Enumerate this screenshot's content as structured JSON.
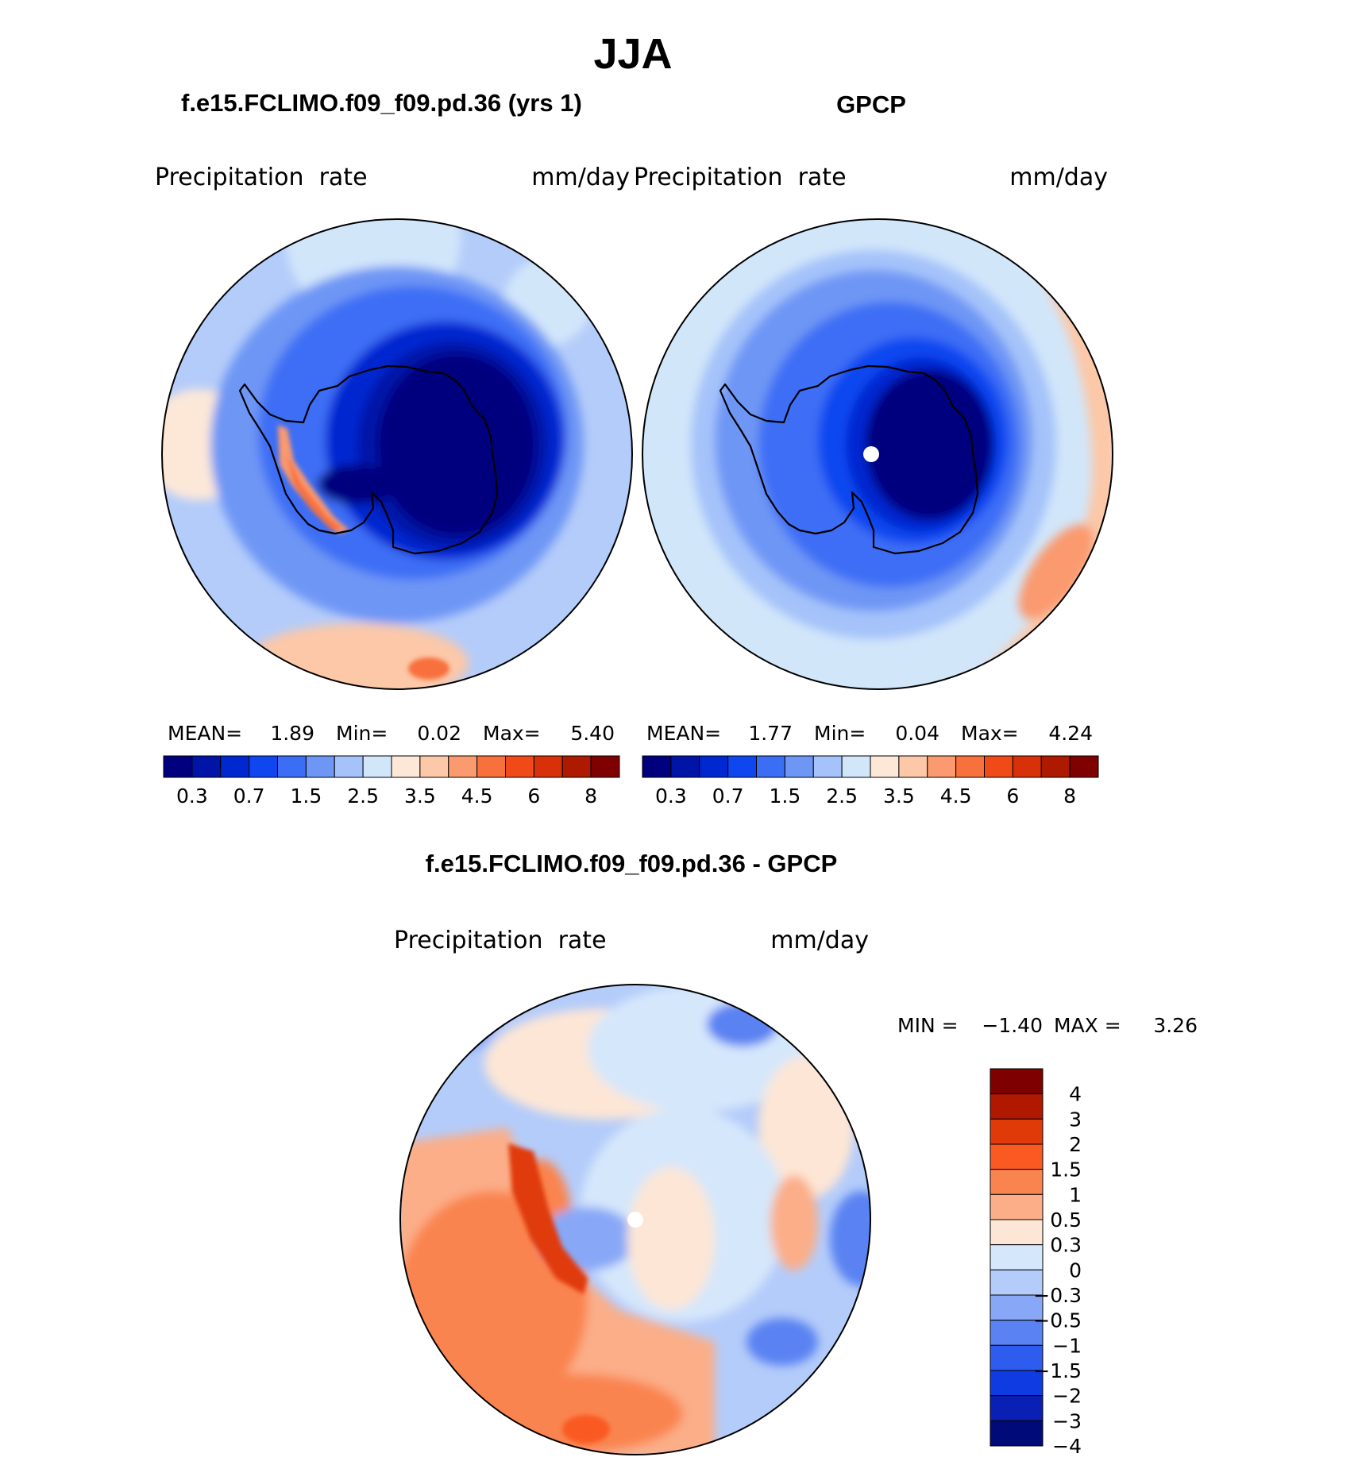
{
  "title": "JJA",
  "panels": [
    {
      "case_title": "f.e15.FCLIMO.f09_f09.pd.36 (yrs 1)",
      "variable": "Precipitation  rate",
      "units": "mm/day",
      "stats": {
        "mean_label": "MEAN=",
        "mean": "1.89",
        "min_label": "Min=",
        "min": "0.02",
        "max_label": "Max=",
        "max": "5.40"
      }
    },
    {
      "case_title": "GPCP",
      "variable": "Precipitation  rate",
      "units": "mm/day",
      "stats": {
        "mean_label": "MEAN=",
        "mean": "1.77",
        "min_label": "Min=",
        "min": "0.04",
        "max_label": "Max=",
        "max": "4.24"
      }
    }
  ],
  "diff_panel": {
    "case_title": "f.e15.FCLIMO.f09_f09.pd.36 - GPCP",
    "variable": "Precipitation  rate",
    "units": "mm/day",
    "min_label": "MIN =",
    "min": "−1.40",
    "max_label": "MAX =",
    "max": "3.26"
  },
  "abs_colorbar": {
    "colors": [
      "#00007f",
      "#0014a8",
      "#0028d0",
      "#0f46f0",
      "#3c6ef5",
      "#6e96f5",
      "#a5c3fa",
      "#d2e6fa",
      "#fde8d8",
      "#fcc8a8",
      "#fa9a6e",
      "#f8703c",
      "#f04a18",
      "#d83008",
      "#ad1a00",
      "#7f0000"
    ],
    "tick_labels": [
      "0.3",
      "0.7",
      "1.5",
      "2.5",
      "3.5",
      "4.5",
      "6",
      "8"
    ]
  },
  "diff_colorbar": {
    "colors": [
      "#7f0000",
      "#b01800",
      "#e03a08",
      "#fa5a22",
      "#fa8450",
      "#fbae88",
      "#fde6d6",
      "#d5e7fb",
      "#b4ccfa",
      "#88a8f7",
      "#5a82f2",
      "#2d5cee",
      "#0f3ce2",
      "#0a20b4",
      "#000a78"
    ],
    "tick_labels": [
      "4",
      "3",
      "2",
      "1.5",
      "1",
      "0.5",
      "0.3",
      "0",
      "−0.3",
      "−0.5",
      "−1",
      "−1.5",
      "−2",
      "−3",
      "−4"
    ]
  }
}
